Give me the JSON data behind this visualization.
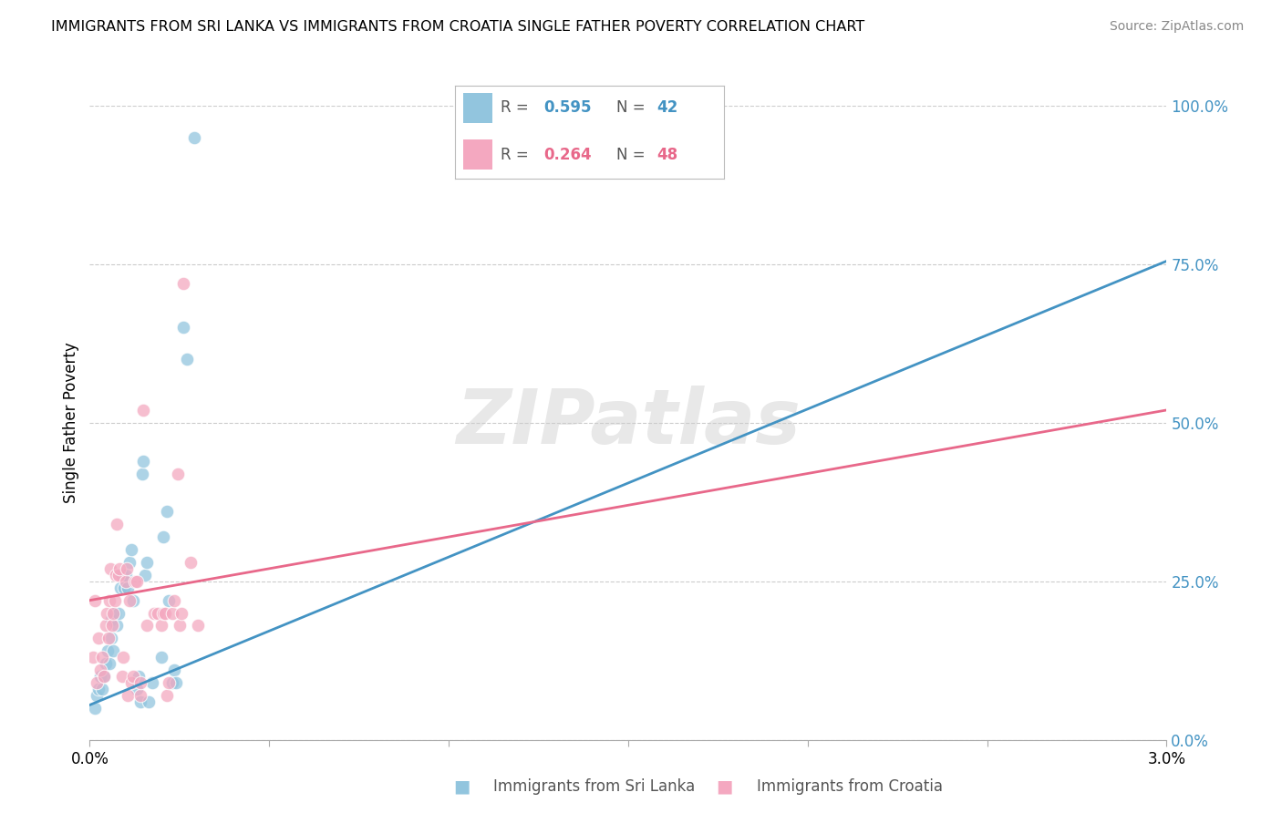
{
  "title": "IMMIGRANTS FROM SRI LANKA VS IMMIGRANTS FROM CROATIA SINGLE FATHER POVERTY CORRELATION CHART",
  "source": "Source: ZipAtlas.com",
  "xlabel_blue": "Immigrants from Sri Lanka",
  "xlabel_pink": "Immigrants from Croatia",
  "ylabel": "Single Father Poverty",
  "xmin": 0.0,
  "xmax": 0.03,
  "ymin": 0.0,
  "ymax": 1.0,
  "legend_blue_r": "0.595",
  "legend_blue_n": "42",
  "legend_pink_r": "0.264",
  "legend_pink_n": "48",
  "blue_color": "#92c5de",
  "pink_color": "#f4a8c0",
  "blue_line_color": "#4393c3",
  "pink_line_color": "#e8688a",
  "blue_scatter": [
    [
      0.00015,
      0.05
    ],
    [
      0.0002,
      0.07
    ],
    [
      0.00025,
      0.08
    ],
    [
      0.0003,
      0.1
    ],
    [
      0.00035,
      0.08
    ],
    [
      0.0004,
      0.1
    ],
    [
      0.00045,
      0.12
    ],
    [
      0.0005,
      0.14
    ],
    [
      0.00055,
      0.12
    ],
    [
      0.0006,
      0.16
    ],
    [
      0.0006,
      0.19
    ],
    [
      0.00065,
      0.14
    ],
    [
      0.0007,
      0.2
    ],
    [
      0.00075,
      0.18
    ],
    [
      0.0008,
      0.2
    ],
    [
      0.00085,
      0.24
    ],
    [
      0.0009,
      0.26
    ],
    [
      0.00095,
      0.24
    ],
    [
      0.001,
      0.26
    ],
    [
      0.00105,
      0.24
    ],
    [
      0.0011,
      0.28
    ],
    [
      0.00115,
      0.3
    ],
    [
      0.0012,
      0.22
    ],
    [
      0.0013,
      0.08
    ],
    [
      0.00135,
      0.1
    ],
    [
      0.0014,
      0.06
    ],
    [
      0.00145,
      0.42
    ],
    [
      0.0015,
      0.44
    ],
    [
      0.00155,
      0.26
    ],
    [
      0.0016,
      0.28
    ],
    [
      0.00165,
      0.06
    ],
    [
      0.00175,
      0.09
    ],
    [
      0.002,
      0.13
    ],
    [
      0.00205,
      0.32
    ],
    [
      0.00215,
      0.36
    ],
    [
      0.0022,
      0.22
    ],
    [
      0.0023,
      0.09
    ],
    [
      0.00235,
      0.11
    ],
    [
      0.0024,
      0.09
    ],
    [
      0.0026,
      0.65
    ],
    [
      0.0027,
      0.6
    ],
    [
      0.0029,
      0.95
    ]
  ],
  "pink_scatter": [
    [
      0.0001,
      0.13
    ],
    [
      0.00015,
      0.22
    ],
    [
      0.0002,
      0.09
    ],
    [
      0.00025,
      0.16
    ],
    [
      0.0003,
      0.11
    ],
    [
      0.00035,
      0.13
    ],
    [
      0.0004,
      0.1
    ],
    [
      0.00045,
      0.18
    ],
    [
      0.00048,
      0.2
    ],
    [
      0.00052,
      0.16
    ],
    [
      0.00055,
      0.22
    ],
    [
      0.00058,
      0.27
    ],
    [
      0.00062,
      0.18
    ],
    [
      0.00065,
      0.2
    ],
    [
      0.0007,
      0.22
    ],
    [
      0.00072,
      0.26
    ],
    [
      0.00075,
      0.34
    ],
    [
      0.0008,
      0.26
    ],
    [
      0.00082,
      0.27
    ],
    [
      0.0009,
      0.1
    ],
    [
      0.00092,
      0.13
    ],
    [
      0.001,
      0.25
    ],
    [
      0.00102,
      0.27
    ],
    [
      0.00105,
      0.07
    ],
    [
      0.0011,
      0.22
    ],
    [
      0.00115,
      0.09
    ],
    [
      0.0012,
      0.1
    ],
    [
      0.00125,
      0.25
    ],
    [
      0.0013,
      0.25
    ],
    [
      0.0014,
      0.07
    ],
    [
      0.00142,
      0.09
    ],
    [
      0.0015,
      0.52
    ],
    [
      0.0016,
      0.18
    ],
    [
      0.0018,
      0.2
    ],
    [
      0.0019,
      0.2
    ],
    [
      0.002,
      0.18
    ],
    [
      0.00205,
      0.2
    ],
    [
      0.0021,
      0.2
    ],
    [
      0.00215,
      0.07
    ],
    [
      0.0022,
      0.09
    ],
    [
      0.0023,
      0.2
    ],
    [
      0.00235,
      0.22
    ],
    [
      0.00245,
      0.42
    ],
    [
      0.0025,
      0.18
    ],
    [
      0.00255,
      0.2
    ],
    [
      0.0026,
      0.72
    ],
    [
      0.0028,
      0.28
    ],
    [
      0.003,
      0.18
    ]
  ],
  "watermark": "ZIPatlas",
  "ytick_positions": [
    0.0,
    0.25,
    0.5,
    0.75,
    1.0
  ],
  "ytick_labels": [
    "0.0%",
    "25.0%",
    "50.0%",
    "75.0%",
    "100.0%"
  ],
  "xtick_positions": [
    0.0,
    0.005,
    0.01,
    0.015,
    0.02,
    0.025,
    0.03
  ],
  "xtick_labels": [
    "0.0%",
    "",
    "",
    "",
    "",
    "",
    "3.0%"
  ],
  "blue_line": [
    [
      0.0,
      0.055
    ],
    [
      0.03,
      0.755
    ]
  ],
  "pink_line": [
    [
      0.0,
      0.22
    ],
    [
      0.03,
      0.52
    ]
  ]
}
